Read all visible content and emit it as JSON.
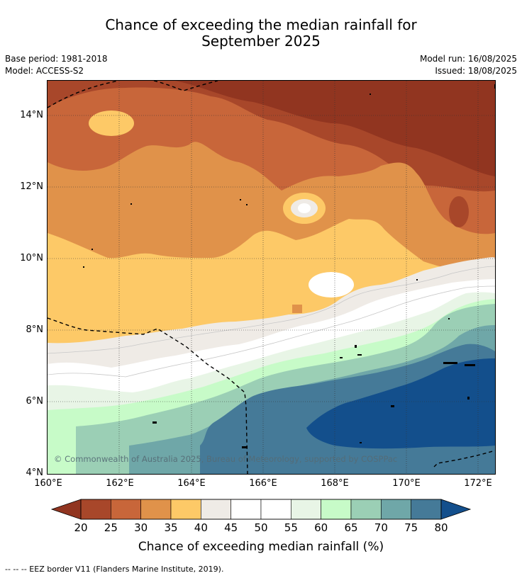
{
  "header": {
    "title_line1": "Chance of exceeding the median rainfall for",
    "title_line2": "September 2025",
    "base_period": "Base period: 1981-2018",
    "model": "Model: ACCESS-S2",
    "model_run": "Model run: 16/08/2025",
    "issued": "Issued: 18/08/2025"
  },
  "map": {
    "lat_labels": [
      "14°N",
      "12°N",
      "10°N",
      "8°N",
      "6°N",
      "4°N"
    ],
    "lon_labels": [
      "160°E",
      "162°E",
      "164°E",
      "166°E",
      "168°E",
      "170°E",
      "172°E"
    ],
    "copyright": "© Commonwealth of Australia 2025, Bureau of Meteorology, supported by COSPPac"
  },
  "colorbar": {
    "ticks": [
      "20",
      "25",
      "30",
      "35",
      "40",
      "45",
      "50",
      "55",
      "60",
      "65",
      "70",
      "75",
      "80"
    ],
    "colors": [
      "#a8472a",
      "#c8663a",
      "#e0924a",
      "#fdc967",
      "#efebe6",
      "#ffffff",
      "#ffffff",
      "#e8f5e6",
      "#c7fbc8",
      "#9bcfb5",
      "#6fa7a8",
      "#457a98"
    ],
    "below_color": "#913520",
    "above_color": "#134f8c",
    "label": "Chance of exceeding median rainfall (%)"
  },
  "footnote": "--  --  -- EEZ border V11 (Flanders Marine Institute, 2019)."
}
